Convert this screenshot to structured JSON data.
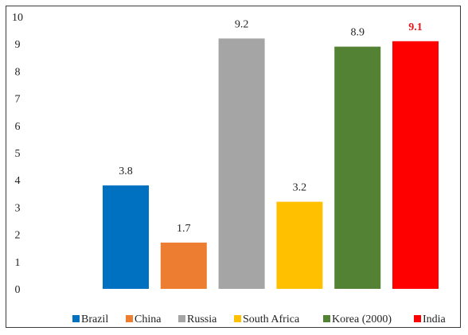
{
  "chart_data": {
    "type": "bar",
    "categories": [
      "Brazil",
      "China",
      "Russia",
      "South Africa",
      "Korea (2000)",
      "India"
    ],
    "values": [
      3.8,
      1.7,
      9.2,
      3.2,
      8.9,
      9.1
    ],
    "value_labels": [
      "3.8",
      "1.7",
      "9.2",
      "3.2",
      "8.9",
      "9.1"
    ],
    "colors": [
      "#0070c0",
      "#ed7d31",
      "#a5a5a5",
      "#ffc000",
      "#548235",
      "#ff0000"
    ],
    "highlight_color": "#e0191a",
    "highlight_index": 5,
    "ylim": [
      0,
      10
    ],
    "yticks": [
      "0",
      "1",
      "2",
      "3",
      "4",
      "5",
      "6",
      "7",
      "8",
      "9",
      "10"
    ],
    "grid": false,
    "legend": "bottom",
    "title": "",
    "xlabel": "",
    "ylabel": ""
  }
}
